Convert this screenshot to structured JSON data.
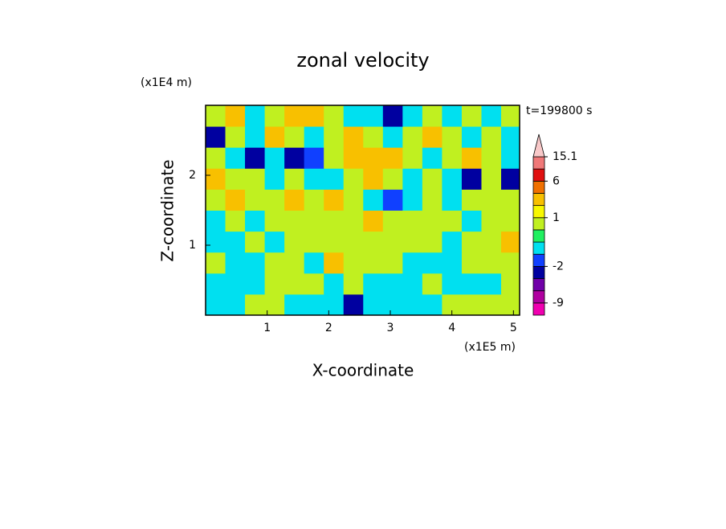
{
  "chart_data": {
    "type": "contourf",
    "title": "zonal velocity",
    "x_label": "X-coordinate",
    "y_label": "Z-coordinate",
    "x_unit": "(x1E5 m)",
    "y_unit": "(x1E4 m)",
    "annotation": "t=199800 s",
    "xlim": [
      0,
      5.1
    ],
    "ylim": [
      0,
      3
    ],
    "xticks": [
      1,
      2,
      3,
      4,
      5
    ],
    "yticks": [
      1,
      2
    ],
    "x": [
      0.16,
      0.48,
      0.8,
      1.12,
      1.44,
      1.76,
      2.08,
      2.4,
      2.72,
      3.04,
      3.36,
      3.68,
      4.0,
      4.32,
      4.64,
      4.96
    ],
    "y": [
      0.15,
      0.45,
      0.75,
      1.05,
      1.35,
      1.65,
      1.95,
      2.25,
      2.55,
      2.85
    ],
    "z": [
      [
        -1,
        -1,
        0.7,
        0.7,
        -1,
        -1,
        -1,
        -4,
        -1,
        -1,
        -1,
        -1,
        0.7,
        0.7,
        0.7,
        0.7
      ],
      [
        -1,
        -1,
        -1,
        0.7,
        0.7,
        0.7,
        -1,
        0.7,
        -1,
        -1,
        -1,
        0.7,
        -1,
        -1,
        -1,
        0.7
      ],
      [
        0.7,
        -1,
        -1,
        0.7,
        0.7,
        -1,
        2,
        0.7,
        0.7,
        0.7,
        -1,
        -1,
        -1,
        0.7,
        0.7,
        0.7
      ],
      [
        -1,
        -1,
        0.7,
        -1,
        0.7,
        0.7,
        0.7,
        0.7,
        0.7,
        0.7,
        0.7,
        0.7,
        -1,
        0.7,
        0.7,
        2
      ],
      [
        -1,
        0.7,
        -1,
        0.7,
        0.7,
        0.7,
        0.7,
        0.7,
        2,
        0.7,
        0.7,
        0.7,
        0.7,
        -1,
        0.7,
        0.7
      ],
      [
        0.7,
        2,
        0.7,
        0.7,
        2,
        0.7,
        2,
        0.7,
        -1,
        -2,
        -1,
        0.7,
        -1,
        0.7,
        0.7,
        0.7
      ],
      [
        2,
        0.7,
        0.7,
        -1,
        0.7,
        -1,
        -1,
        0.7,
        2,
        0.7,
        -1,
        0.7,
        -1,
        -3,
        0.7,
        -3
      ],
      [
        0.7,
        -1,
        -3,
        -1,
        -3,
        -2,
        0.7,
        2,
        3,
        2,
        0.7,
        -1,
        0.7,
        2,
        0.7,
        -1
      ],
      [
        -4,
        0.7,
        -1,
        2,
        0.7,
        -1,
        0.7,
        2,
        0.7,
        -1,
        0.7,
        2,
        0.7,
        -1,
        0.7,
        -1
      ],
      [
        0.7,
        2,
        -1,
        0.7,
        2,
        3,
        0.7,
        -1,
        -1,
        -3,
        -1,
        0.7,
        -1,
        0.7,
        -1,
        0.7
      ]
    ],
    "levels": [
      -12,
      -9,
      -6,
      -4,
      -2,
      -1.5,
      0,
      0.5,
      1,
      1.5,
      4,
      6,
      10,
      15.1
    ],
    "colors": [
      "#f000b0",
      "#b000a0",
      "#7000a8",
      "#0000a0",
      "#1040ff",
      "#00e0f0",
      "#20f060",
      "#c0f020",
      "#f8f800",
      "#f8c000",
      "#f07000",
      "#e01010",
      "#f07878"
    ],
    "over_color": "#f8c8c8",
    "cbar_ticks": [
      15.1,
      6,
      1,
      -2,
      -9
    ]
  }
}
